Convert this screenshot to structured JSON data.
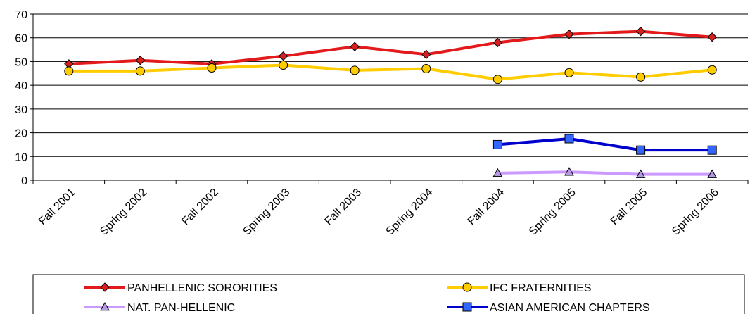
{
  "chart_data": {
    "type": "line",
    "categories": [
      "Fall 2001",
      "Spring 2002",
      "Fall 2002",
      "Spring 2003",
      "Fall 2003",
      "Spring 2004",
      "Fall 2004",
      "Spring 2005",
      "Fall 2005",
      "Spring 2006"
    ],
    "ylim": [
      0,
      70
    ],
    "yticks": [
      0,
      10,
      20,
      30,
      40,
      50,
      60,
      70
    ],
    "grid": "horizontal",
    "legend_position": "bottom",
    "series": [
      {
        "name": "PANHELLENIC SORORITIES",
        "color": "#e31a1c",
        "marker": "diamond",
        "marker_color": "#d62020",
        "values": [
          49,
          50.5,
          49,
          52.3,
          56.3,
          53,
          58,
          61.5,
          62.7,
          60.3
        ]
      },
      {
        "name": "IFC FRATERNITIES",
        "color": "#ffcc00",
        "marker": "circle",
        "marker_color": "#ffcc00",
        "values": [
          46,
          46,
          47.3,
          48.5,
          46.3,
          47,
          42.5,
          45.3,
          43.5,
          46.5
        ]
      },
      {
        "name": "NAT. PAN-HELLENIC",
        "color": "#cc99ff",
        "marker": "triangle",
        "marker_color": "#b399e6",
        "values": [
          null,
          null,
          null,
          null,
          null,
          null,
          3,
          3.5,
          2.5,
          2.5
        ]
      },
      {
        "name": "ASIAN AMERICAN CHAPTERS",
        "color": "#0000cc",
        "marker": "square",
        "marker_color": "#3366ff",
        "values": [
          null,
          null,
          null,
          null,
          null,
          null,
          15,
          17.5,
          12.7,
          12.7
        ]
      }
    ]
  }
}
